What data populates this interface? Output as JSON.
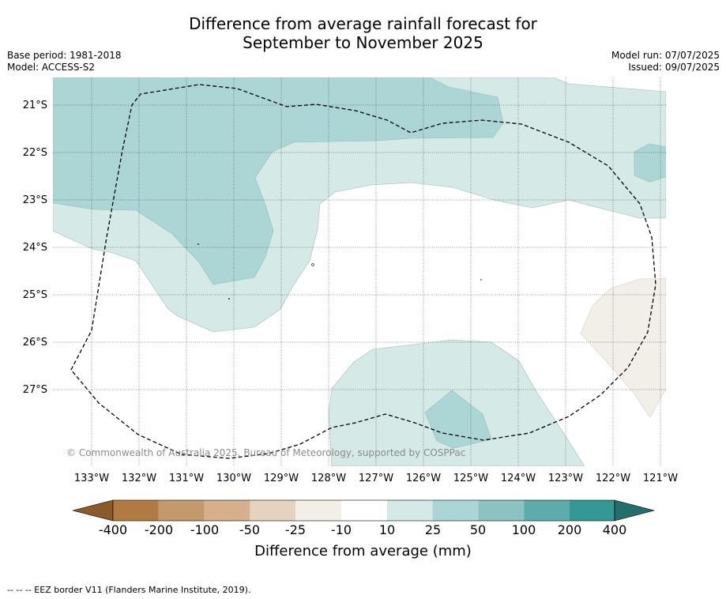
{
  "header": {
    "title_line1": "Difference from average rainfall forecast for",
    "title_line2": "September to November 2025",
    "base_period": "Base period: 1981-2018",
    "model": "Model: ACCESS-S2",
    "model_run": "Model run: 07/07/2025",
    "issued": "Issued: 09/07/2025"
  },
  "map": {
    "latitude_labels": [
      "21°S",
      "22°S",
      "23°S",
      "24°S",
      "25°S",
      "26°S",
      "27°S"
    ],
    "longitude_labels": [
      "133°W",
      "132°W",
      "131°W",
      "130°W",
      "129°W",
      "128°W",
      "127°W",
      "126°W",
      "125°W",
      "124°W",
      "123°W",
      "122°W",
      "121°W"
    ],
    "copyright": "© Commonwealth of Australia 2025, Bureau of Meteorology, supported by COSPPac",
    "colors": {
      "band_10_25": "#d5e9e7",
      "band_25_50": "#acd6d5",
      "band_neg25_neg10": "#f2efe9",
      "border": "#000000"
    }
  },
  "colorbar": {
    "ticks": [
      "-400",
      "-200",
      "-100",
      "-50",
      "-25",
      "-10",
      "10",
      "25",
      "50",
      "100",
      "200",
      "400"
    ],
    "colors": [
      "#8a5a2a",
      "#b07a42",
      "#c49a6c",
      "#d6b08c",
      "#e6d3bf",
      "#f2efe9",
      "#ffffff",
      "#d5e9e7",
      "#acd6d5",
      "#8cc3c2",
      "#5eabab",
      "#349897",
      "#256e6e"
    ],
    "label": "Difference from average (mm)"
  },
  "footer": {
    "legend_text": "--  --  -- EEZ border V11 (Flanders Marine Institute, 2019)."
  }
}
